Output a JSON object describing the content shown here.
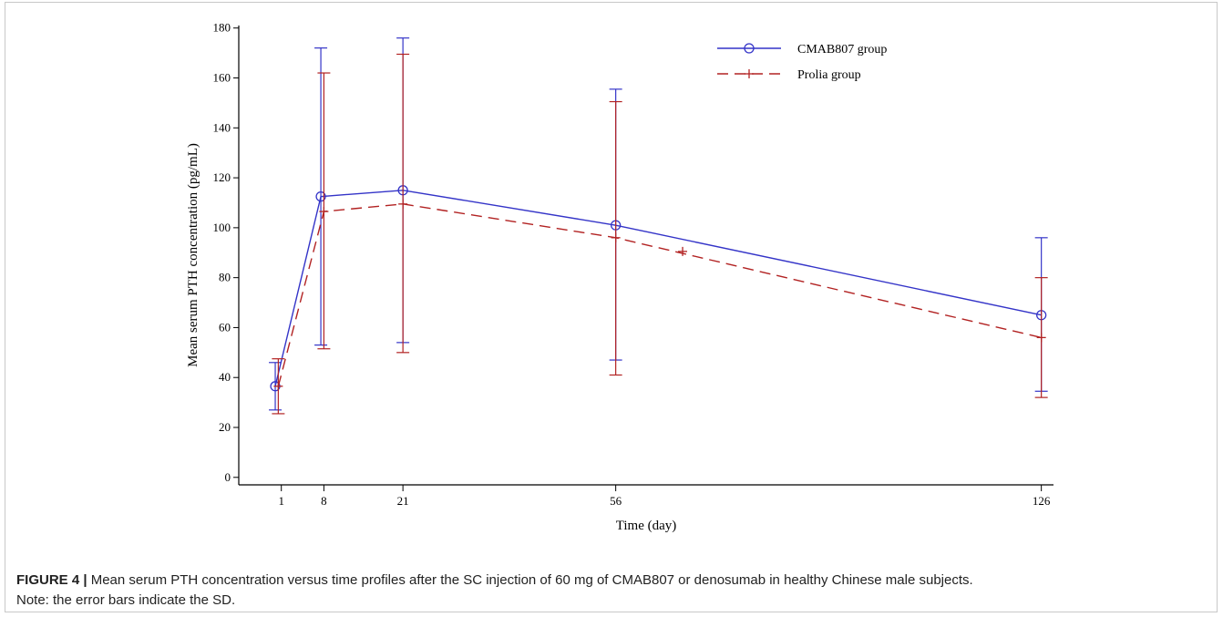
{
  "caption": {
    "label": "FIGURE 4 |",
    "text": " Mean serum PTH concentration versus time profiles after the SC injection of 60 mg of CMAB807 or denosumab in healthy Chinese male subjects.",
    "note": "Note: the error bars indicate the SD."
  },
  "colors": {
    "cmab807": "#3434c8",
    "prolia": "#b22222",
    "axis": "#000000"
  },
  "chart_data": {
    "type": "line",
    "title": "",
    "xlabel": "Time (day)",
    "ylabel": "Mean serum PTH concentration (pg/mL)",
    "x_ticks": [
      1,
      8,
      21,
      56,
      126
    ],
    "y_ticks": [
      0,
      20,
      40,
      60,
      80,
      100,
      120,
      140,
      160,
      180
    ],
    "xlim": [
      -6,
      128
    ],
    "ylim": [
      -3,
      181
    ],
    "legend_position": "top-right",
    "grid": false,
    "series": [
      {
        "name": "CMAB807 group",
        "marker": "circle",
        "line_style": "solid",
        "color": "#3434c8",
        "x": [
          0,
          7.5,
          21,
          56,
          126
        ],
        "y": [
          36.5,
          112.5,
          115,
          101,
          65
        ],
        "err_low": [
          27,
          53,
          54,
          47,
          34.5
        ],
        "err_high": [
          46,
          172,
          176,
          155.5,
          96
        ]
      },
      {
        "name": "Prolia group",
        "marker": "plus",
        "line_style": "dashed",
        "color": "#b22222",
        "x": [
          0.5,
          8,
          21,
          56,
          126
        ],
        "y": [
          36.5,
          106.5,
          109.5,
          96,
          56
        ],
        "err_low": [
          25.5,
          51.5,
          50,
          41,
          32
        ],
        "err_high": [
          47.5,
          162,
          169.5,
          150.5,
          80
        ],
        "extra_markers": [
          {
            "x": 67,
            "y": 90.5
          }
        ]
      }
    ]
  }
}
